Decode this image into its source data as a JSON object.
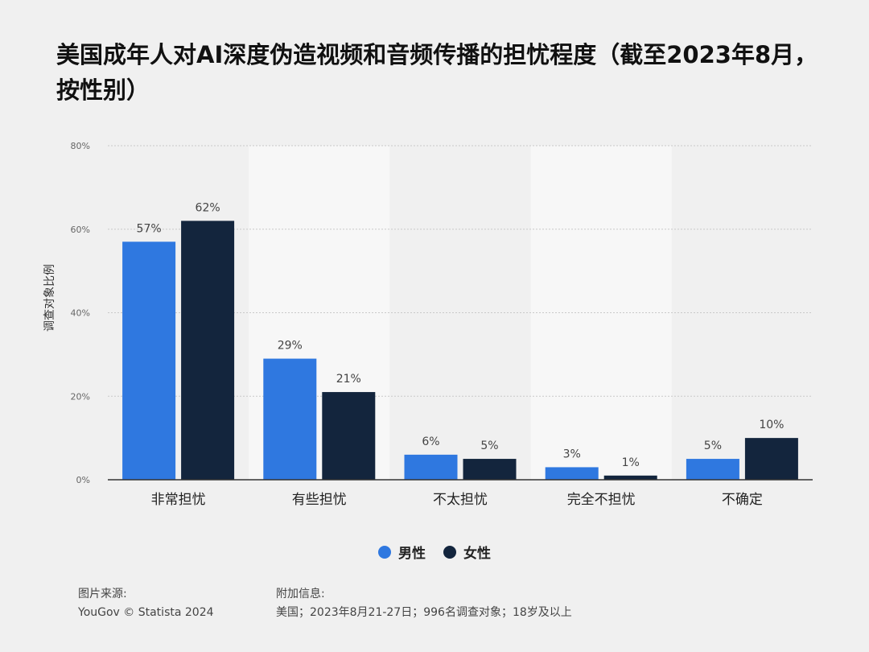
{
  "title": "美国成年人对AI深度伪造视频和音频传播的担忧程度（截至2023年8月，按性别）",
  "colors": {
    "men": "#2f78e0",
    "women": "#13253d",
    "background": "#f0f0f0",
    "band": "#f7f7f7",
    "grid": "#c9c9c9"
  },
  "chart_data": {
    "type": "bar",
    "categories": [
      "非常担忧",
      "有些担忧",
      "不太担忧",
      "完全不担忧",
      "不确定"
    ],
    "series": [
      {
        "name": "男性",
        "values": [
          57,
          29,
          6,
          3,
          5
        ]
      },
      {
        "name": "女性",
        "values": [
          62,
          21,
          5,
          1,
          10
        ]
      }
    ],
    "value_labels": [
      [
        "57%",
        "29%",
        "6%",
        "3%",
        "5%"
      ],
      [
        "62%",
        "21%",
        "5%",
        "1%",
        "10%"
      ]
    ],
    "ylabel": "调查对象比例",
    "ylim": [
      0,
      80
    ],
    "yticks": [
      0,
      20,
      40,
      60,
      80
    ],
    "ytick_labels": [
      "0%",
      "20%",
      "40%",
      "60%",
      "80%"
    ],
    "grid": true,
    "legend_position": "bottom"
  },
  "legend": {
    "men": "男性",
    "women": "女性"
  },
  "footer": {
    "source_heading": "图片来源:",
    "source_text": "YouGov © Statista 2024",
    "info_heading": "附加信息:",
    "info_text": "美国；2023年8月21-27日；996名调查对象；18岁及以上"
  }
}
